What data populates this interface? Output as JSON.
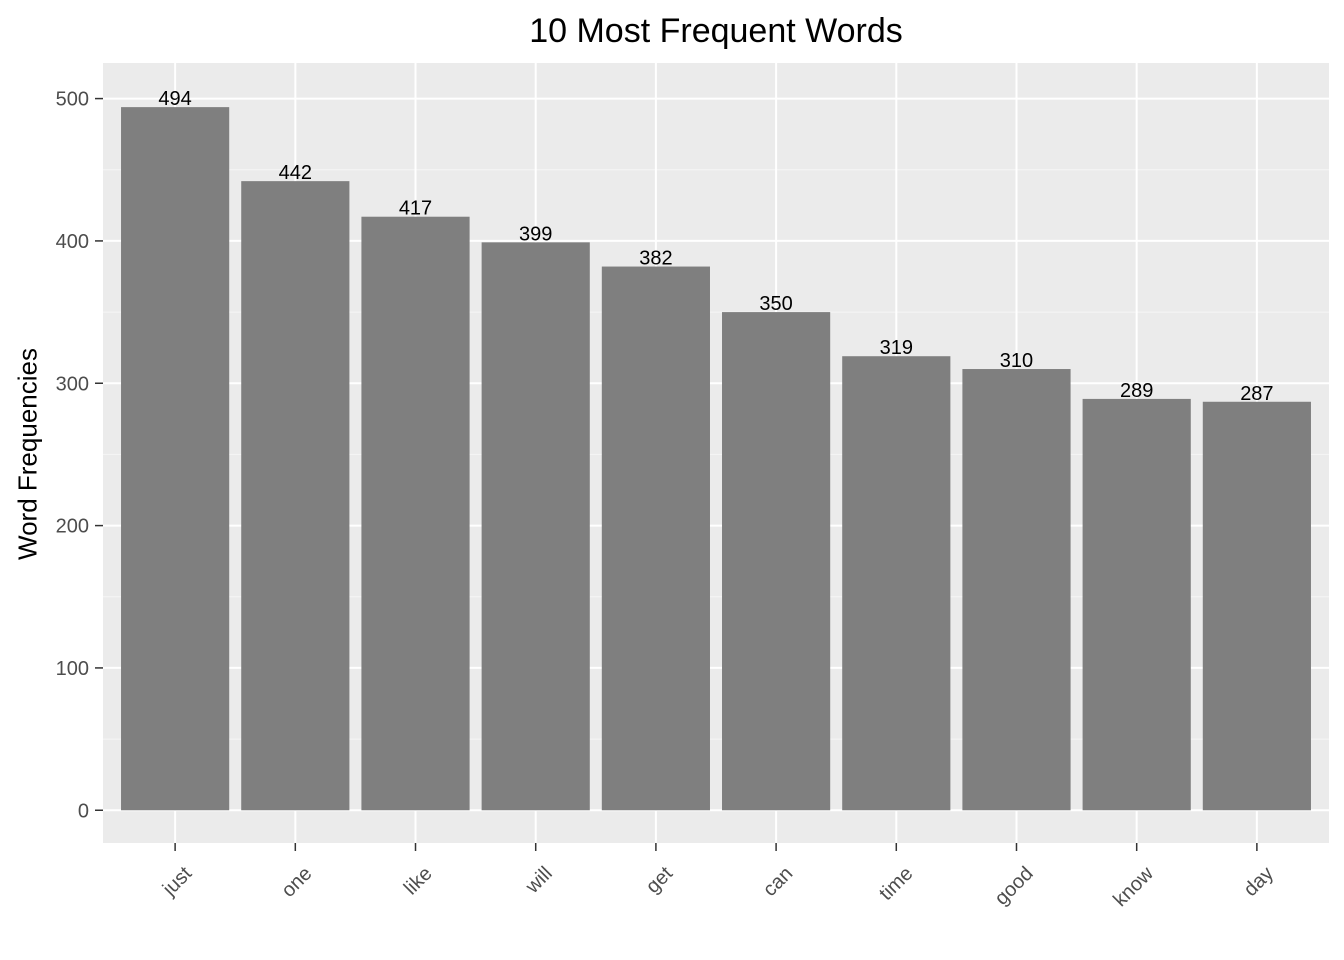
{
  "chart_data": {
    "type": "bar",
    "title": "10 Most Frequent Words",
    "xlabel": "",
    "ylabel": "Word Frequencies",
    "categories": [
      "just",
      "one",
      "like",
      "will",
      "get",
      "can",
      "time",
      "good",
      "know",
      "day"
    ],
    "values": [
      494,
      442,
      417,
      399,
      382,
      350,
      319,
      310,
      289,
      287
    ],
    "data_labels": [
      "494",
      "442",
      "417",
      "399",
      "382",
      "350",
      "319",
      "310",
      "289",
      "287"
    ],
    "y_ticks": [
      0,
      100,
      200,
      300,
      400,
      500
    ],
    "ylim": [
      -23,
      525
    ],
    "grid": true,
    "legend": "none",
    "x_tick_rotation_deg": -45,
    "colors": {
      "bar": "#7f7f7f",
      "panel_background": "#ebebeb",
      "grid_major": "#ffffff",
      "tick_label": "#4d4d4d",
      "text": "#000000"
    }
  }
}
